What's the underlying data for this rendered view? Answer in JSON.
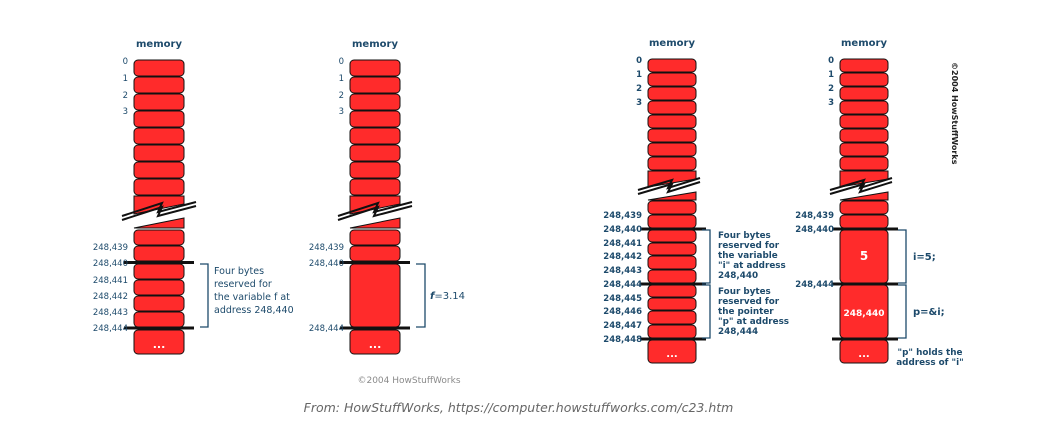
{
  "memory_label": "memory",
  "low_addresses": [
    "0",
    "1",
    "2",
    "3"
  ],
  "ellipsis": "...",
  "d1": {
    "addresses": [
      "248,439",
      "248,440",
      "248,441",
      "248,442",
      "248,443",
      "248,444"
    ],
    "note": [
      "Four bytes",
      "reserved for",
      "the variable f at",
      "address 248,440"
    ]
  },
  "d2": {
    "addresses": [
      "248,439",
      "248,440",
      "248,444"
    ],
    "var_name": "f",
    "var_value": "=3.14"
  },
  "copyright_center": "©2004 HowStuffWorks",
  "d3": {
    "addresses": [
      "248,439",
      "248,440",
      "248,441",
      "248,442",
      "248,443",
      "248,444",
      "248,445",
      "248,446",
      "248,447",
      "248,448"
    ],
    "note1": [
      "Four bytes",
      "reserved for",
      "the variable",
      "\"i\" at address",
      "248,440"
    ],
    "note2": [
      "Four bytes",
      "reserved for",
      "the pointer",
      "\"p\" at address",
      "248,444"
    ]
  },
  "d4": {
    "addresses": [
      "248,439",
      "248,440",
      "248,444"
    ],
    "cell1_value": "5",
    "cell2_value": "248,440",
    "stmt1": "i=5;",
    "stmt2": "p=&i;",
    "note": [
      "\"p\" holds the",
      "address of \"i\""
    ]
  },
  "copyright_vertical": "©2004 HowStuffWorks",
  "caption": "From: HowStuffWorks, https://computer.howstuffworks.com/c23.htm"
}
